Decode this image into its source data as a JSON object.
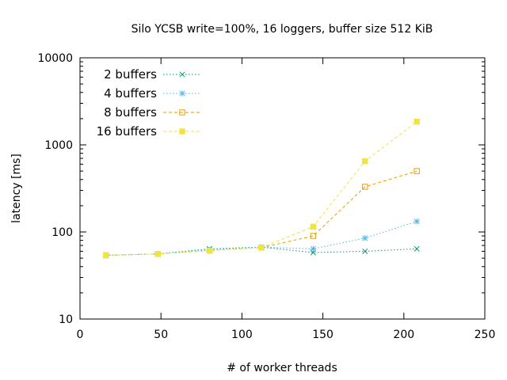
{
  "chart_data": {
    "type": "line",
    "title": "Silo YCSB write=100%, 16 loggers, buffer size 512 KiB",
    "xlabel": "# of worker threads",
    "ylabel": "latency [ms]",
    "xlim": [
      0,
      250
    ],
    "ylim": [
      10,
      10000
    ],
    "yscale": "log",
    "xticks": [
      0,
      50,
      100,
      150,
      200,
      250
    ],
    "yticks": [
      10,
      100,
      1000,
      10000
    ],
    "xtick_labels": [
      "0",
      "50",
      "100",
      "150",
      "200",
      "250"
    ],
    "ytick_labels": [
      "10",
      "100",
      "1000",
      "10000"
    ],
    "legend_position": "top-left",
    "grid": false,
    "series": [
      {
        "name": "2 buffers",
        "color": "#009e73",
        "marker": "x",
        "dash": "dotted",
        "x": [
          16,
          48,
          80,
          112,
          144,
          176,
          208
        ],
        "y": [
          54,
          56,
          64,
          67,
          58,
          60,
          64
        ]
      },
      {
        "name": "4 buffers",
        "color": "#56b4e9",
        "marker": "star",
        "dash": "dotted",
        "x": [
          16,
          48,
          80,
          112,
          144,
          176,
          208
        ],
        "y": [
          54,
          56,
          62,
          67,
          64,
          85,
          132
        ]
      },
      {
        "name": "8 buffers",
        "color": "#e69f00",
        "marker": "open-square",
        "dash": "dashed",
        "x": [
          16,
          48,
          80,
          112,
          144,
          176,
          208
        ],
        "y": [
          54,
          56,
          61,
          66,
          90,
          330,
          500
        ]
      },
      {
        "name": "16 buffers",
        "color": "#f0e442",
        "marker": "filled-square",
        "dash": "dashed",
        "x": [
          16,
          48,
          80,
          112,
          144,
          176,
          208
        ],
        "y": [
          54,
          56,
          61,
          66,
          115,
          650,
          1850
        ]
      }
    ]
  }
}
